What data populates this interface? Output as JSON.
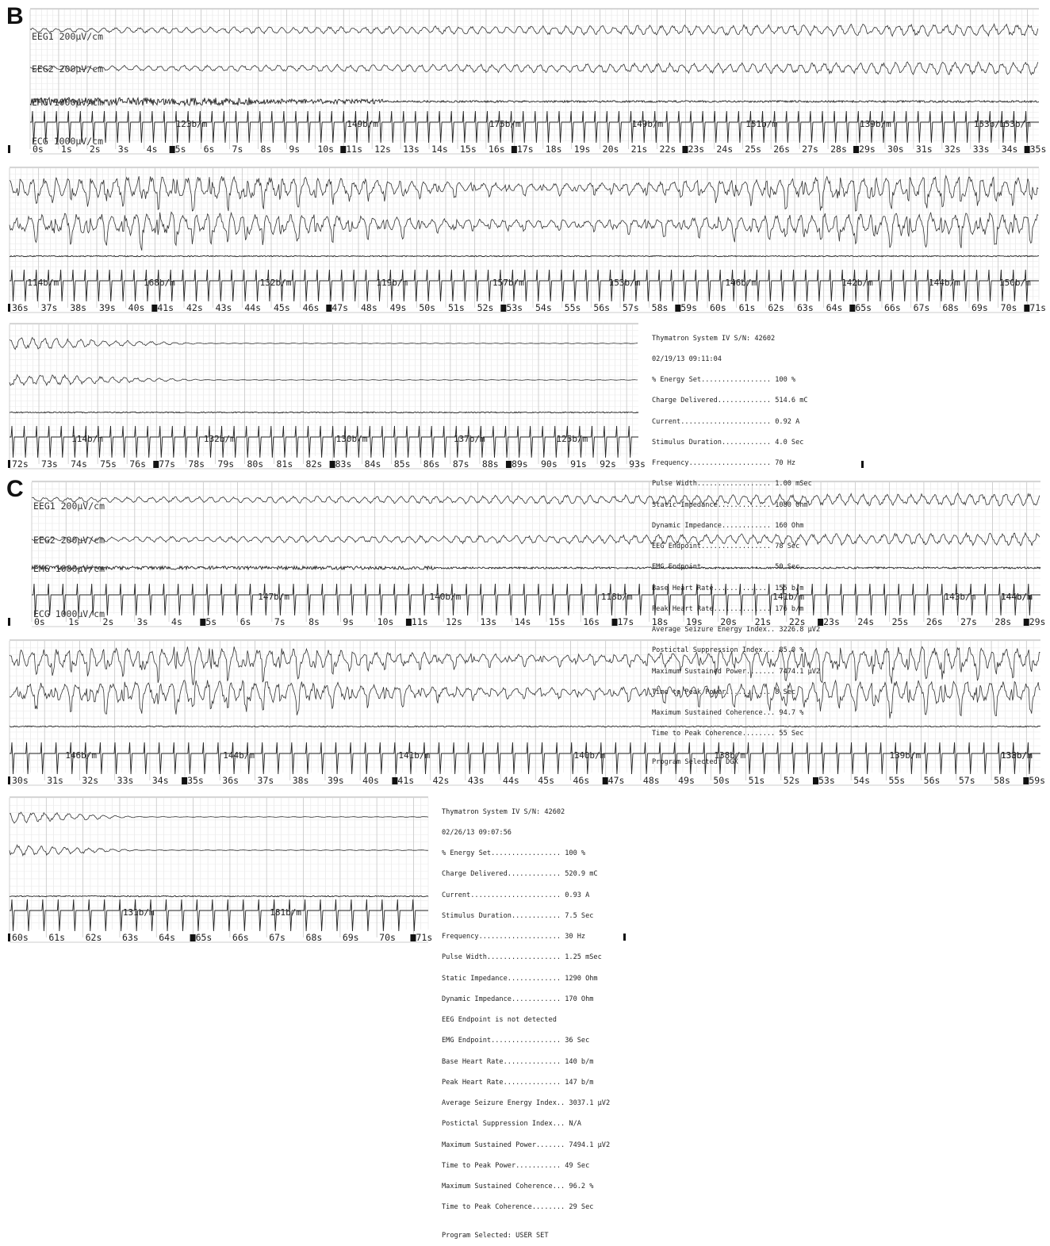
{
  "panel_b": {
    "letter": "B",
    "channel_labels": [
      "EEG1 200μV/cm",
      "EEG2 200μV/cm",
      "EMG 1000μV/cm",
      "ECG 1000μV/cm"
    ],
    "rows": [
      {
        "start_s": 0,
        "end_s": 35,
        "suffix_s": "",
        "heart_rates": [
          {
            "t": 5,
            "label": "123b/m"
          },
          {
            "t": 11,
            "label": "149b/m"
          },
          {
            "t": 16,
            "label": "175b/m"
          },
          {
            "t": 21,
            "label": "149b/m"
          },
          {
            "t": 25,
            "label": "151b/m"
          },
          {
            "t": 29,
            "label": "139b/m"
          },
          {
            "t": 33,
            "label": "153b/m"
          },
          {
            "t": 37,
            "label": "153b/m"
          }
        ],
        "emg_activity": "high-then-taper",
        "eeg_activity": "build",
        "has_labels": true
      },
      {
        "start_s": 36,
        "end_s": 71,
        "suffix_s": "",
        "heart_rates": [
          {
            "t": 36.5,
            "label": "114b/m"
          },
          {
            "t": 40.5,
            "label": "168b/m"
          },
          {
            "t": 44.5,
            "label": "132b/m"
          },
          {
            "t": 48.5,
            "label": "119b/m"
          },
          {
            "t": 52.5,
            "label": "157b/m"
          },
          {
            "t": 56.5,
            "label": "153b/m"
          },
          {
            "t": 60.5,
            "label": "146b/m"
          },
          {
            "t": 64.5,
            "label": "142b/m"
          },
          {
            "t": 67.5,
            "label": "144b/m"
          },
          {
            "t": 71.5,
            "label": "150b/m"
          }
        ],
        "emg_activity": "flat",
        "eeg_activity": "spikes",
        "has_labels": false
      },
      {
        "start_s": 72,
        "end_s": 93,
        "suffix_s": "",
        "heart_rates": [
          {
            "t": 74,
            "label": "114b/m"
          },
          {
            "t": 78.5,
            "label": "132b/m"
          },
          {
            "t": 83,
            "label": "130b/m"
          },
          {
            "t": 87,
            "label": "137b/m"
          },
          {
            "t": 90.5,
            "label": "125b/m"
          }
        ],
        "emg_activity": "flat",
        "eeg_activity": "suppress",
        "has_labels": false
      }
    ],
    "report": {
      "header": "Thymatron System IV S/N: 42602",
      "datetime": "02/19/13 09:11:04",
      "lines": [
        "% Energy Set................. 100 %",
        "Charge Delivered............. 514.6 mC",
        "Current...................... 0.92 A",
        "Stimulus Duration............ 4.0 Sec",
        "Frequency.................... 70 Hz",
        "Pulse Width.................. 1.00 mSec",
        "Static Impedance............. 1080 Ohm",
        "Dynamic Impedance............ 160 Ohm",
        "EEG Endpoint................. 78 Sec",
        "EMG Endpoint................. 50 Sec",
        "Base Heart Rate.............. 155 b/m",
        "Peak Heart Rate.............. 176 b/m",
        "Average Seizure Energy Index.. 3226.8 μV2",
        "Postictal Suppression Index... 85.0 %",
        "Maximum Sustained Power....... 7474.1 μV2",
        "Time to Peak Power........... 8 Sec",
        "Maximum Sustained Coherence... 94.7 %",
        "Time to Peak Coherence........ 55 Sec"
      ],
      "program": "Program Selected: DGX"
    }
  },
  "panel_c": {
    "letter": "C",
    "channel_labels": [
      "EEG1 200μV/cm",
      "EEG2 200μV/cm",
      "EMG 1000μV/cm",
      "ECG 1000μV/cm"
    ],
    "rows": [
      {
        "start_s": 0,
        "end_s": 29,
        "suffix_s": "",
        "heart_rates": [
          {
            "t": 6.5,
            "label": "147b/m"
          },
          {
            "t": 11.5,
            "label": "140b/m"
          },
          {
            "t": 16.5,
            "label": "118b/m"
          },
          {
            "t": 21.5,
            "label": "141b/m"
          },
          {
            "t": 26.5,
            "label": "143b/m"
          },
          {
            "t": 31.5,
            "label": "144b/m"
          },
          {
            "t": 36.5,
            "label": "144b/m"
          }
        ],
        "emg_activity": "medium",
        "eeg_activity": "build",
        "has_labels": true
      },
      {
        "start_s": 30,
        "end_s": 59,
        "suffix_s": "",
        "heart_rates": [
          {
            "t": 31.5,
            "label": "146b/m"
          },
          {
            "t": 36,
            "label": "144b/m"
          },
          {
            "t": 41,
            "label": "141b/m"
          },
          {
            "t": 46,
            "label": "140b/m"
          },
          {
            "t": 50,
            "label": "138b/m"
          },
          {
            "t": 55,
            "label": "139b/m"
          },
          {
            "t": 59,
            "label": "138b/m"
          },
          {
            "t": 63,
            "label": "133b/m"
          }
        ],
        "emg_activity": "flat",
        "eeg_activity": "spikes",
        "has_labels": false
      },
      {
        "start_s": 60,
        "end_s": 71,
        "suffix_s": "",
        "heart_rates": [
          {
            "t": 63,
            "label": "131b/m"
          },
          {
            "t": 67,
            "label": "181b/m"
          }
        ],
        "emg_activity": "flat",
        "eeg_activity": "suppress",
        "has_labels": false
      }
    ],
    "report": {
      "header": "Thymatron System IV S/N: 42602",
      "datetime": "02/26/13 09:07:56",
      "lines": [
        "% Energy Set................. 100 %",
        "Charge Delivered............. 520.9 mC",
        "Current...................... 0.93 A",
        "Stimulus Duration............ 7.5 Sec",
        "Frequency.................... 30 Hz",
        "Pulse Width.................. 1.25 mSec",
        "Static Impedance............. 1290 Ohm",
        "Dynamic Impedance............ 170 Ohm",
        "EEG Endpoint is not detected",
        "EMG Endpoint................. 36 Sec",
        "Base Heart Rate.............. 140 b/m",
        "Peak Heart Rate.............. 147 b/m",
        "Average Seizure Energy Index.. 3037.1 μV2",
        "Postictal Suppression Index... N/A",
        "Maximum Sustained Power....... 7494.1 μV2",
        "Time to Peak Power........... 49 Sec",
        "Maximum Sustained Coherence... 96.2 %",
        "Time to Peak Coherence........ 29 Sec"
      ],
      "program": "Program Selected: USER SET"
    }
  }
}
